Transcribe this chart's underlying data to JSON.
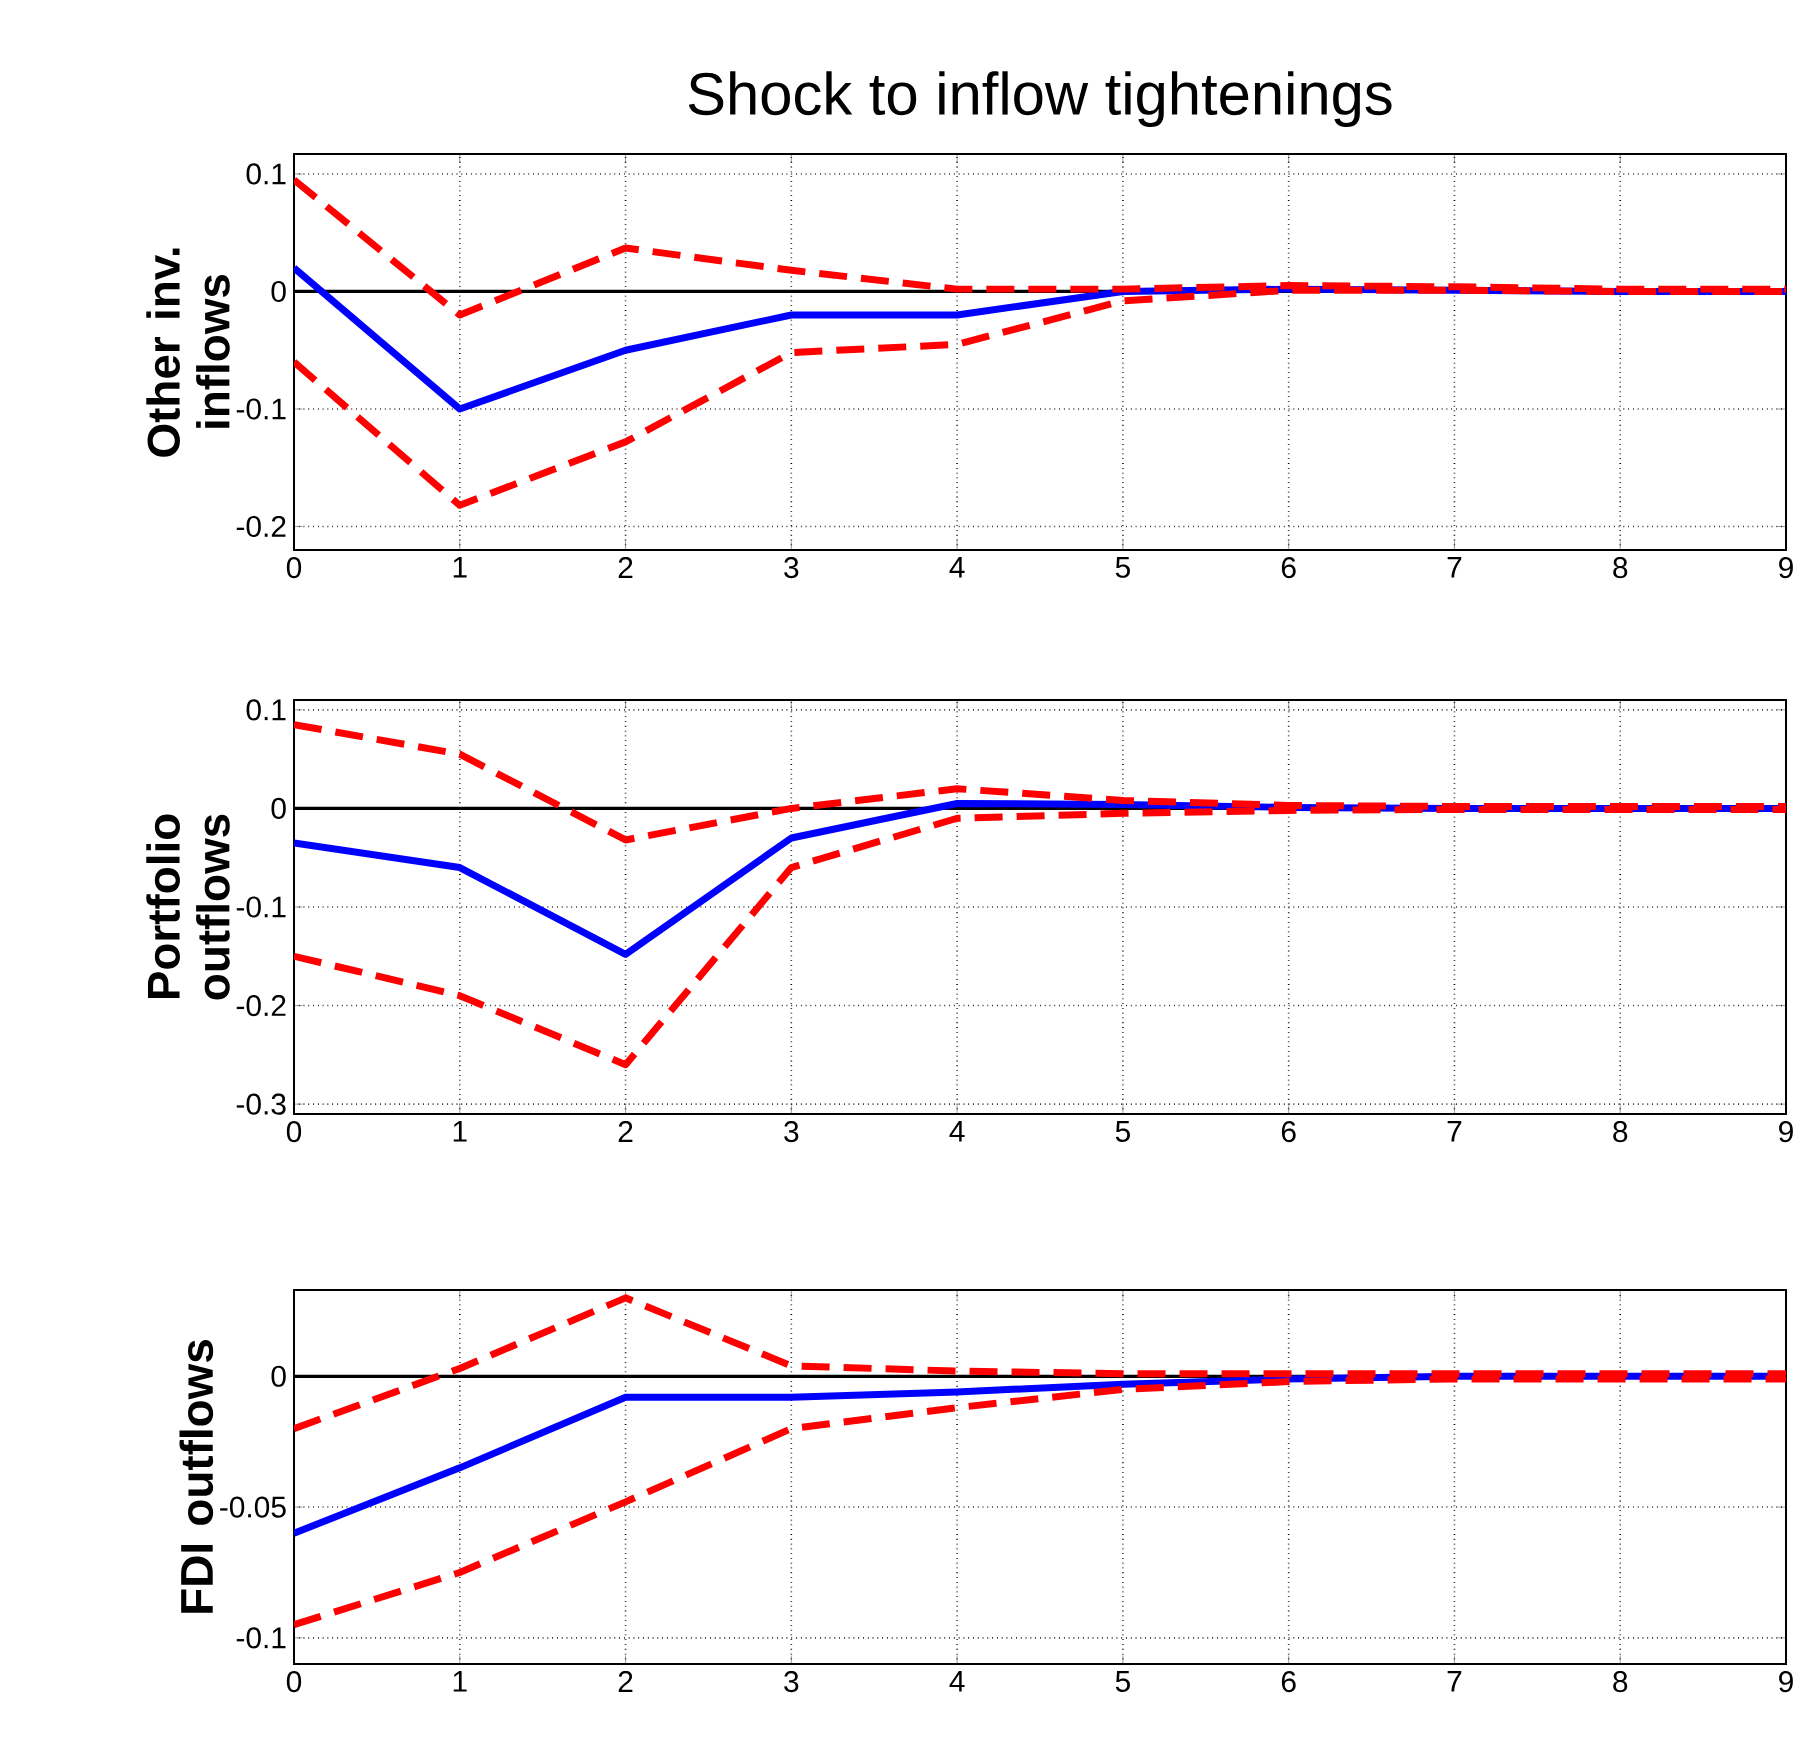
{
  "chart_data": [
    {
      "type": "line",
      "title": "Shock to inflow tightenings",
      "ylabel": "Other inv. inflows",
      "x": [
        0,
        1,
        2,
        3,
        4,
        5,
        6,
        7,
        8,
        9
      ],
      "xlim": [
        0,
        9
      ],
      "xticks": [
        0,
        1,
        2,
        3,
        4,
        5,
        6,
        7,
        8,
        9
      ],
      "ylim": [
        -0.22,
        0.117
      ],
      "yticks": [
        -0.2,
        -0.1,
        0,
        0.1
      ],
      "grid": true,
      "ref_lines": [
        {
          "axis": "y",
          "value": 0,
          "color": "#000000"
        }
      ],
      "series": [
        {
          "color": "#0000ff",
          "line_style": "solid",
          "values": [
            0.02,
            -0.1,
            -0.05,
            -0.02,
            -0.02,
            0,
            0.002,
            0.001,
            0,
            0
          ]
        },
        {
          "color": "#ff0000",
          "line_style": "dashed",
          "values": [
            0.095,
            -0.02,
            0.037,
            0.018,
            0.002,
            0.002,
            0.005,
            0.004,
            0.002,
            0.002
          ]
        },
        {
          "color": "#ff0000",
          "line_style": "dashed",
          "values": [
            -0.06,
            -0.182,
            -0.128,
            -0.052,
            -0.045,
            -0.008,
            0.001,
            0.001,
            0,
            0
          ]
        }
      ]
    },
    {
      "type": "line",
      "ylabel": "Portfolio outflows",
      "x": [
        0,
        1,
        2,
        3,
        4,
        5,
        6,
        7,
        8,
        9
      ],
      "xlim": [
        0,
        9
      ],
      "xticks": [
        0,
        1,
        2,
        3,
        4,
        5,
        6,
        7,
        8,
        9
      ],
      "ylim": [
        -0.31,
        0.11
      ],
      "yticks": [
        -0.3,
        -0.2,
        -0.1,
        0,
        0.1
      ],
      "grid": true,
      "ref_lines": [
        {
          "axis": "y",
          "value": 0,
          "color": "#000000"
        }
      ],
      "series": [
        {
          "color": "#0000ff",
          "line_style": "solid",
          "values": [
            -0.035,
            -0.06,
            -0.148,
            -0.03,
            0.005,
            0.004,
            0.001,
            0,
            0,
            0
          ]
        },
        {
          "color": "#ff0000",
          "line_style": "dashed",
          "values": [
            0.085,
            0.055,
            -0.032,
            0,
            0.02,
            0.008,
            0.003,
            0.002,
            0.002,
            0.002
          ]
        },
        {
          "color": "#ff0000",
          "line_style": "dashed",
          "values": [
            -0.15,
            -0.19,
            -0.26,
            -0.06,
            -0.01,
            -0.005,
            -0.002,
            -0.001,
            -0.001,
            -0.001
          ]
        }
      ]
    },
    {
      "type": "line",
      "ylabel": "FDI outflows",
      "x": [
        0,
        1,
        2,
        3,
        4,
        5,
        6,
        7,
        8,
        9
      ],
      "xlim": [
        0,
        9
      ],
      "xticks": [
        0,
        1,
        2,
        3,
        4,
        5,
        6,
        7,
        8,
        9
      ],
      "ylim": [
        -0.11,
        0.033
      ],
      "yticks": [
        -0.1,
        -0.05,
        0
      ],
      "grid": true,
      "ref_lines": [
        {
          "axis": "y",
          "value": 0,
          "color": "#000000"
        }
      ],
      "series": [
        {
          "color": "#0000ff",
          "line_style": "solid",
          "values": [
            -0.06,
            -0.035,
            -0.008,
            -0.008,
            -0.006,
            -0.003,
            -0.001,
            0,
            0,
            0
          ]
        },
        {
          "color": "#ff0000",
          "line_style": "dashed",
          "values": [
            -0.02,
            0.003,
            0.03,
            0.004,
            0.002,
            0.001,
            0.001,
            0.001,
            0.001,
            0.001
          ]
        },
        {
          "color": "#ff0000",
          "line_style": "dashed",
          "values": [
            -0.095,
            -0.075,
            -0.048,
            -0.02,
            -0.012,
            -0.005,
            -0.002,
            -0.001,
            -0.001,
            -0.001
          ]
        }
      ]
    }
  ]
}
